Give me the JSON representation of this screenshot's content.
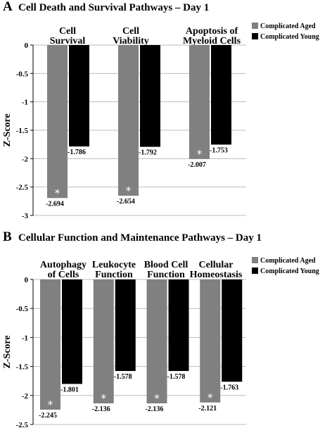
{
  "chart_data": [
    {
      "type": "bar",
      "panel": "A",
      "title": "Cell Death and Survival Pathways – Day 1",
      "ylabel": "Z-Score",
      "ylim": [
        -3,
        0
      ],
      "yticks": [
        "0",
        "-0.5",
        "-1",
        "-1.5",
        "-2",
        "-2.5",
        "-3"
      ],
      "categories": [
        [
          "Cell",
          "Survival"
        ],
        [
          "Cell",
          "Viability"
        ],
        [
          "Apoptosis of",
          "Myeloid Cells"
        ]
      ],
      "series": [
        {
          "name": "Complicated Aged",
          "color": "#808080",
          "values": [
            -2.694,
            -2.654,
            -2.007
          ],
          "labels": [
            "-2.694",
            "-2.654",
            "-2.007"
          ],
          "significant": [
            true,
            true,
            true
          ]
        },
        {
          "name": "Complicated Young",
          "color": "#000000",
          "values": [
            -1.786,
            -1.792,
            -1.753
          ],
          "labels": [
            "-1.786",
            "-1.792",
            "-1.753"
          ],
          "significant": [
            false,
            false,
            false
          ]
        }
      ],
      "significance_marker": "*",
      "grid": true,
      "legend_position": "top-right"
    },
    {
      "type": "bar",
      "panel": "B",
      "title": "Cellular Function and Maintenance Pathways – Day 1",
      "ylabel": "Z-Score",
      "ylim": [
        -2.5,
        0
      ],
      "yticks": [
        "0",
        "-0.5",
        "-1",
        "-1.5",
        "-2",
        "-2.5"
      ],
      "categories": [
        [
          "Autophagy",
          "of Cells"
        ],
        [
          "Leukocyte",
          "Function"
        ],
        [
          "Blood Cell",
          "Function"
        ],
        [
          "Cellular",
          "Homeostasis"
        ]
      ],
      "series": [
        {
          "name": "Complicated Aged",
          "color": "#808080",
          "values": [
            -2.245,
            -2.136,
            -2.136,
            -2.121
          ],
          "labels": [
            "-2.245",
            "-2.136",
            "-2.136",
            "-2.121"
          ],
          "significant": [
            true,
            true,
            true,
            true
          ]
        },
        {
          "name": "Complicated Young",
          "color": "#000000",
          "values": [
            -1.801,
            -1.578,
            -1.578,
            -1.763
          ],
          "labels": [
            "-1.801",
            "-1.578",
            "-1.578",
            "-1.763"
          ],
          "significant": [
            false,
            false,
            false,
            false
          ]
        }
      ],
      "significance_marker": "*",
      "grid": true,
      "legend_position": "top-right"
    }
  ]
}
